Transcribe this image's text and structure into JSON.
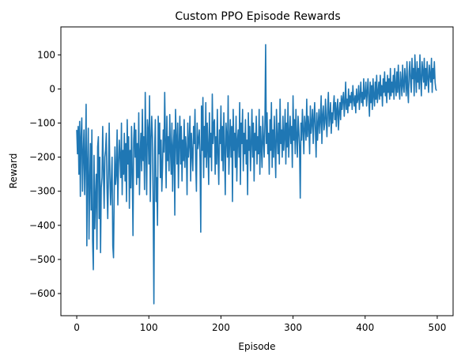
{
  "chart_data": {
    "type": "line",
    "title": "Custom PPO Episode Rewards",
    "xlabel": "Episode",
    "ylabel": "Reward",
    "xlim": [
      -22,
      522
    ],
    "ylim": [
      -665,
      182
    ],
    "x_ticks": [
      0,
      100,
      200,
      300,
      400,
      500
    ],
    "y_ticks": [
      100,
      0,
      -100,
      -200,
      -300,
      -400,
      -500,
      -600
    ],
    "y_tick_labels": [
      "100",
      "0",
      "−100",
      "−200",
      "−300",
      "−400",
      "−500",
      "−600"
    ],
    "grid": false,
    "legend": "none",
    "series": [
      {
        "color": "#1f77b4",
        "x_start": 0,
        "x_step": 1,
        "values": [
          -120,
          -190,
          -110,
          -250,
          -95,
          -315,
          -140,
          -85,
          -300,
          -190,
          -120,
          -310,
          -200,
          -45,
          -460,
          -220,
          -115,
          -440,
          -275,
          -160,
          -355,
          -120,
          -445,
          -530,
          -195,
          -410,
          -320,
          -250,
          -470,
          -170,
          -140,
          -380,
          -200,
          -480,
          -290,
          -260,
          -110,
          -240,
          -350,
          -200,
          -180,
          -130,
          -290,
          -380,
          -250,
          -100,
          -260,
          -340,
          -270,
          -200,
          -460,
          -495,
          -300,
          -170,
          -280,
          -250,
          -120,
          -340,
          -220,
          -150,
          -200,
          -260,
          -100,
          -310,
          -180,
          -250,
          -130,
          -270,
          -160,
          -330,
          -90,
          -220,
          -140,
          -350,
          -180,
          -290,
          -110,
          -245,
          -430,
          -150,
          -100,
          -200,
          -120,
          -280,
          -160,
          -260,
          -70,
          -310,
          -190,
          -130,
          -240,
          -60,
          -210,
          -140,
          -295,
          -10,
          -180,
          -310,
          -90,
          -120,
          -220,
          -20,
          -330,
          -150,
          -80,
          -140,
          -350,
          -630,
          -180,
          -90,
          -330,
          -260,
          -400,
          -80,
          -190,
          -100,
          -260,
          -150,
          -300,
          -230,
          -120,
          -185,
          -10,
          -160,
          -290,
          -80,
          -210,
          -140,
          -240,
          -75,
          -180,
          -250,
          -100,
          -300,
          -170,
          -120,
          -370,
          -60,
          -140,
          -220,
          -100,
          -290,
          -160,
          -80,
          -220,
          -110,
          -270,
          -150,
          -210,
          -90,
          -230,
          -140,
          -180,
          -310,
          -100,
          -200,
          -160,
          -80,
          -270,
          -130,
          -190,
          -240,
          -110,
          -160,
          -60,
          -220,
          -300,
          -100,
          -175,
          -150,
          -120,
          -210,
          -420,
          -50,
          -180,
          -25,
          -260,
          -110,
          -200,
          -40,
          -230,
          -100,
          -170,
          -280,
          -70,
          -200,
          -130,
          -240,
          -15,
          -160,
          -100,
          -90,
          -250,
          -140,
          -220,
          -60,
          -190,
          -280,
          -120,
          -160,
          -50,
          -210,
          -110,
          -240,
          -70,
          -180,
          -310,
          -100,
          -140,
          -200,
          -20,
          -250,
          -160,
          -90,
          -200,
          -110,
          -330,
          -60,
          -180,
          -130,
          -230,
          -80,
          -270,
          -150,
          -120,
          -200,
          -40,
          -280,
          -100,
          -160,
          -60,
          -240,
          -130,
          -190,
          -90,
          -220,
          -150,
          -310,
          -70,
          -180,
          -110,
          -240,
          -160,
          -60,
          -200,
          -100,
          -270,
          -130,
          -180,
          -80,
          -220,
          -140,
          -190,
          -60,
          -250,
          -110,
          -170,
          -230,
          -80,
          -150,
          -200,
          -100,
          130,
          -160,
          -70,
          -190,
          -130,
          -250,
          -90,
          -180,
          -40,
          -230,
          -120,
          -200,
          -80,
          -170,
          -260,
          -60,
          -140,
          -190,
          -100,
          -220,
          -30,
          -160,
          -120,
          -200,
          -80,
          -180,
          -140,
          -60,
          -220,
          -100,
          -170,
          -40,
          -200,
          -130,
          -80,
          -160,
          -110,
          -230,
          -20,
          -150,
          -90,
          -190,
          -60,
          -140,
          -200,
          -80,
          -120,
          -170,
          -320,
          -100,
          -150,
          -60,
          -120,
          -190,
          -80,
          -110,
          -150,
          -30,
          -140,
          -80,
          -110,
          -190,
          -50,
          -130,
          -100,
          -60,
          -160,
          -90,
          -40,
          -120,
          -200,
          -70,
          -150,
          -100,
          -60,
          -130,
          -90,
          -20,
          -160,
          -80,
          -50,
          -120,
          -100,
          -30,
          -90,
          -140,
          -60,
          -10,
          -110,
          -80,
          -40,
          -130,
          -70,
          -100,
          -50,
          -20,
          -90,
          -40,
          -110,
          -60,
          -30,
          -120,
          -70,
          -40,
          -90,
          -20,
          -60,
          -30,
          -10,
          -80,
          -40,
          20,
          -60,
          -30,
          -70,
          0,
          -50,
          -20,
          -40,
          -10,
          -60,
          10,
          -30,
          -50,
          -20,
          -70,
          0,
          -40,
          -30,
          10,
          -60,
          -20,
          20,
          -40,
          -10,
          -50,
          30,
          -30,
          -20,
          20,
          -50,
          -10,
          30,
          -30,
          -80,
          20,
          -40,
          10,
          -60,
          30,
          -20,
          -50,
          20,
          -30,
          40,
          -40,
          -10,
          20,
          -30,
          40,
          -20,
          10,
          -50,
          30,
          -10,
          50,
          -20,
          20,
          -40,
          40,
          -10,
          30,
          -30,
          60,
          -20,
          20,
          -10,
          40,
          -30,
          60,
          10,
          -20,
          50,
          -10,
          70,
          0,
          -30,
          50,
          20,
          -20,
          70,
          10,
          -10,
          60,
          30,
          -20,
          80,
          0,
          -40,
          50,
          80,
          20,
          -10,
          90,
          30,
          60,
          -20,
          100,
          40,
          -10,
          80,
          20,
          60,
          0,
          100,
          30,
          -20,
          80,
          50,
          20,
          90,
          0,
          60,
          10,
          80,
          30,
          -10,
          70,
          40,
          20,
          90,
          -10,
          60,
          30,
          80,
          20,
          0,
          -5
        ]
      }
    ]
  }
}
